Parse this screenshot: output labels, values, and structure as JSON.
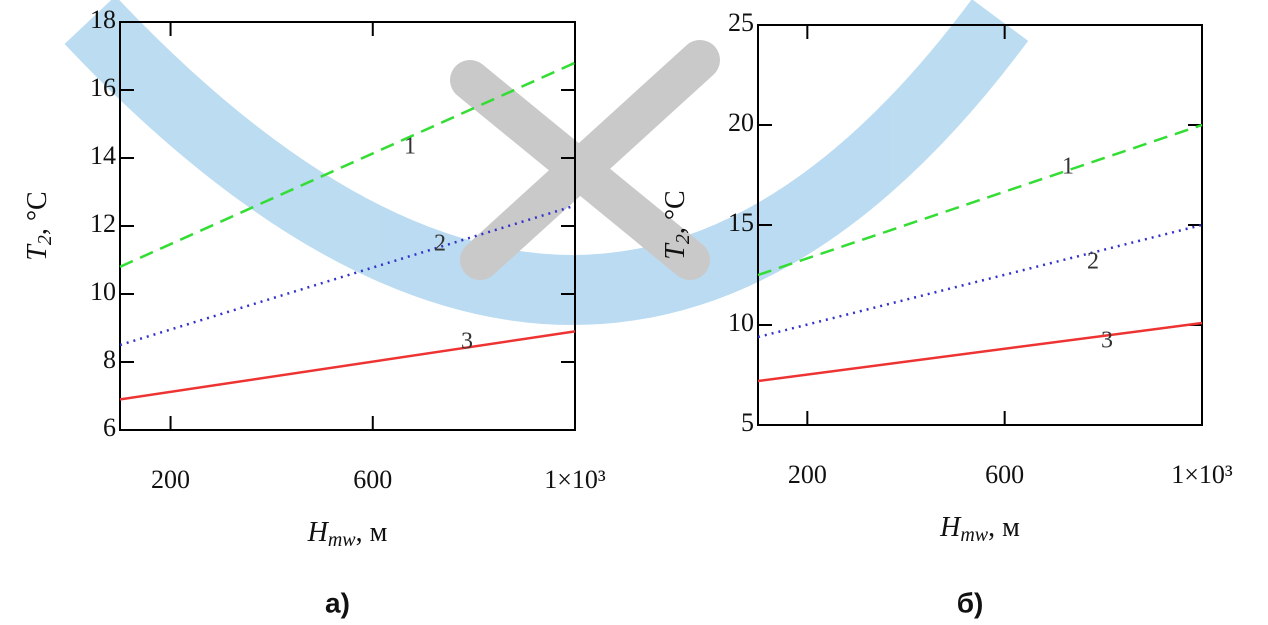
{
  "chart_data": [
    {
      "type": "line",
      "panel_label": "а)",
      "x_label": {
        "symbol": "H",
        "subscript": "mw",
        "unit": ", м"
      },
      "y_label": {
        "symbol": "T",
        "subscript": "2",
        "unit": ", °C"
      },
      "x": [
        100,
        1000
      ],
      "xlim": [
        100,
        1000
      ],
      "xticks": [
        200,
        600,
        {
          "value": 1000,
          "label": "1×10³"
        }
      ],
      "ylim": [
        6,
        18
      ],
      "yticks": [
        6,
        8,
        10,
        12,
        14,
        16,
        18
      ],
      "series": [
        {
          "name": "1",
          "color": "#33dd33",
          "style": "dashed",
          "values": [
            10.8,
            16.8
          ]
        },
        {
          "name": "2",
          "color": "#3333cc",
          "style": "dotted",
          "values": [
            8.5,
            12.6
          ]
        },
        {
          "name": "3",
          "color": "#ee3333",
          "style": "solid",
          "values": [
            6.9,
            8.9
          ]
        }
      ]
    },
    {
      "type": "line",
      "panel_label": "б)",
      "x_label": {
        "symbol": "H",
        "subscript": "mw",
        "unit": ", м"
      },
      "y_label": {
        "symbol": "T",
        "subscript": "2",
        "unit": ", °C"
      },
      "x": [
        100,
        1000
      ],
      "xlim": [
        100,
        1000
      ],
      "xticks": [
        200,
        600,
        {
          "value": 1000,
          "label": "1×10³"
        }
      ],
      "ylim": [
        5,
        25
      ],
      "yticks": [
        5,
        10,
        15,
        20,
        25
      ],
      "series": [
        {
          "name": "1",
          "color": "#33dd33",
          "style": "dashed",
          "values": [
            12.5,
            20.0
          ]
        },
        {
          "name": "2",
          "color": "#3333cc",
          "style": "dotted",
          "values": [
            9.4,
            15.0
          ]
        },
        {
          "name": "3",
          "color": "#ee3333",
          "style": "solid",
          "values": [
            7.2,
            10.1
          ]
        }
      ]
    }
  ]
}
